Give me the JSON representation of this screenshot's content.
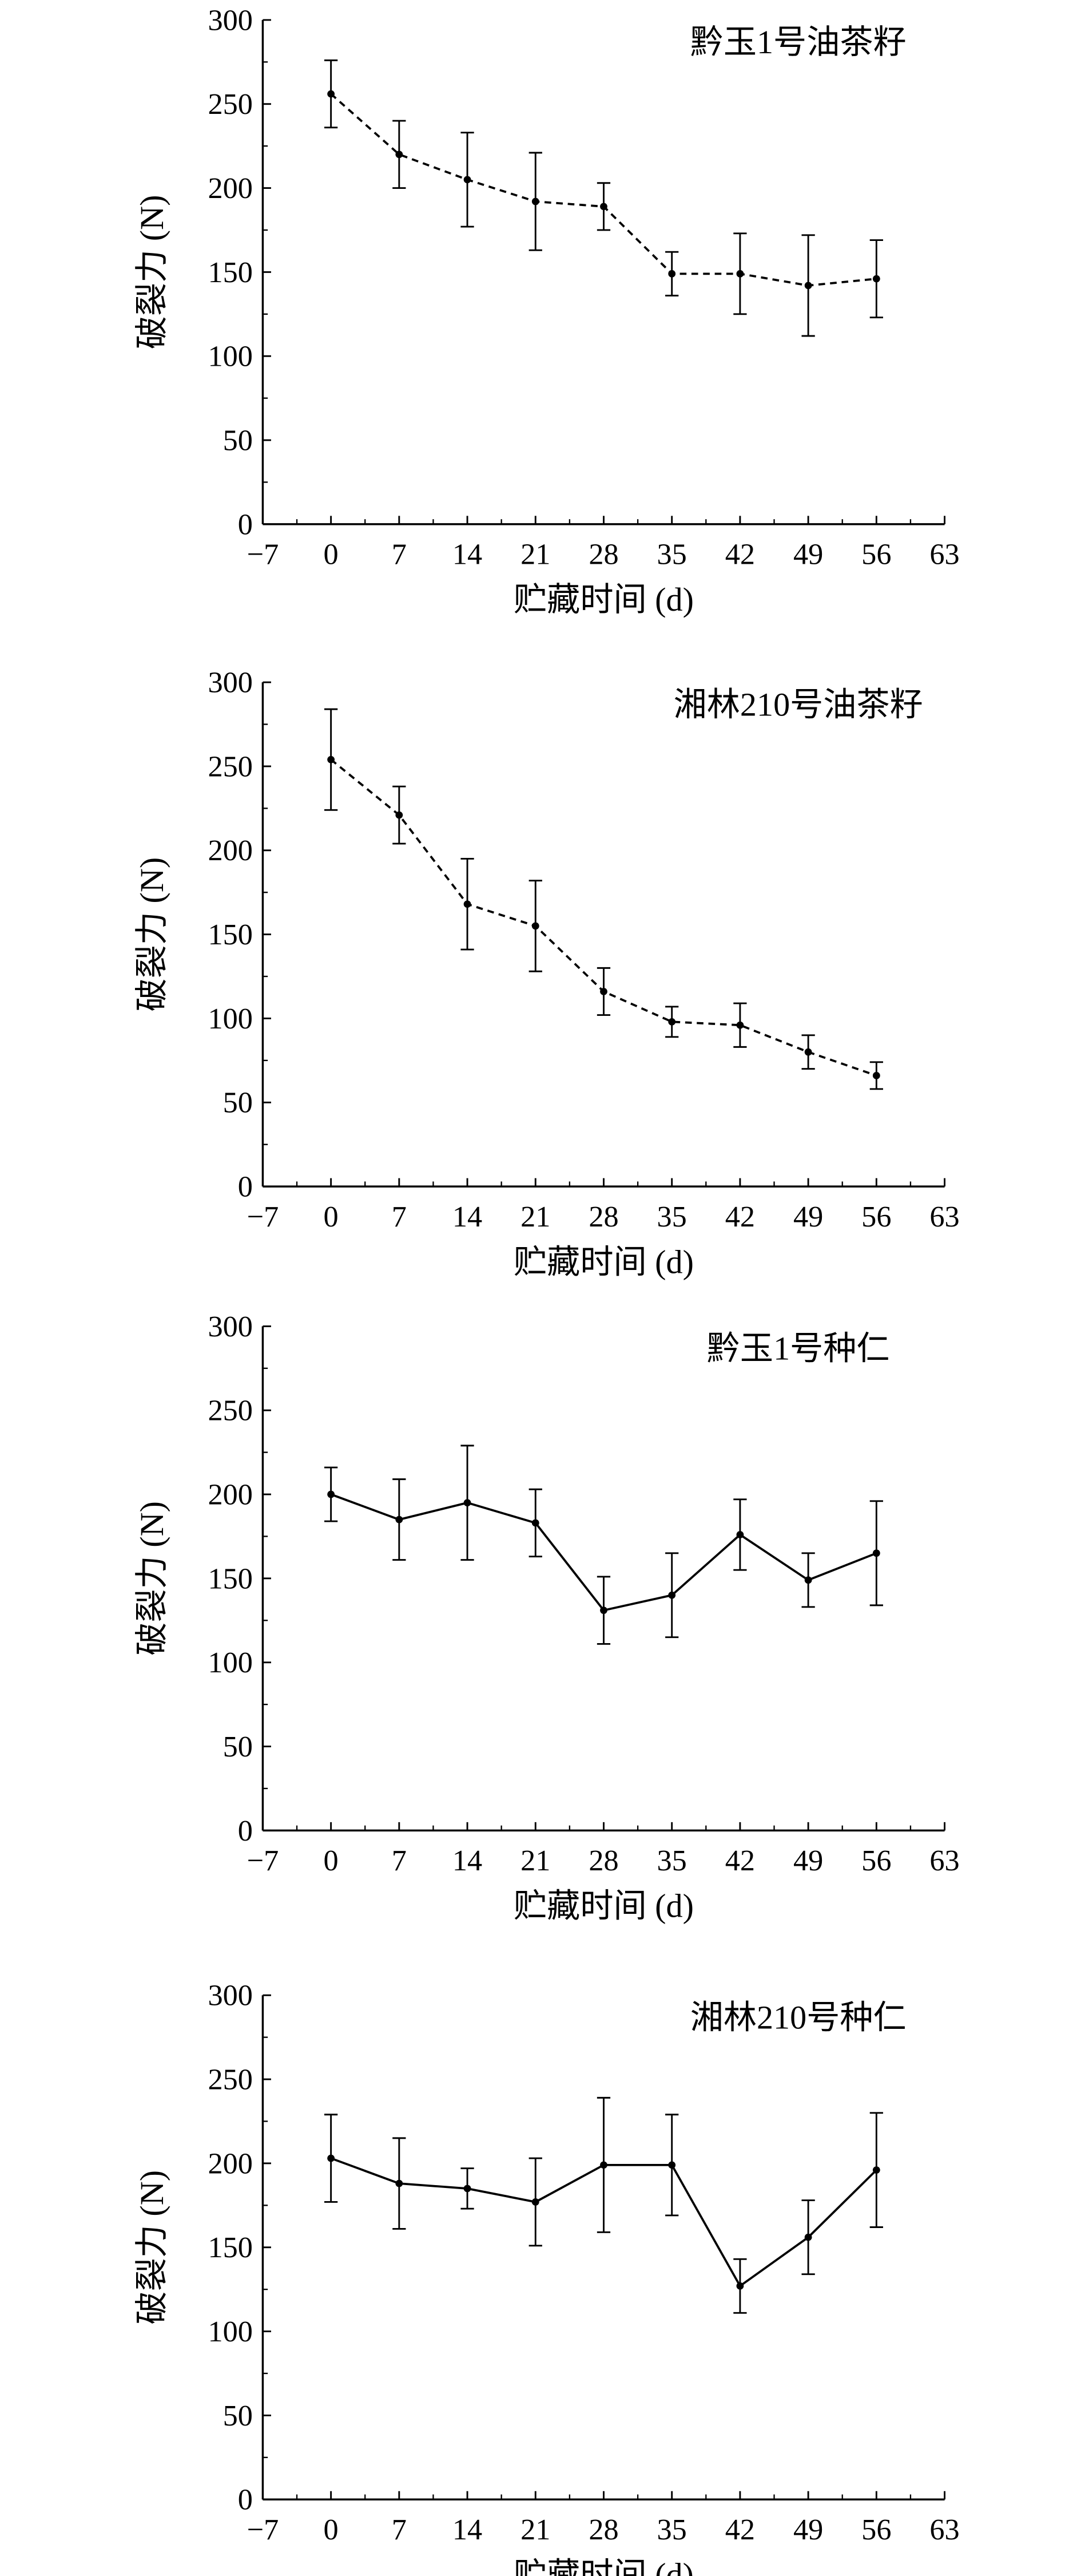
{
  "chart_data": [
    {
      "type": "line",
      "title": "黔玉1号油茶籽",
      "xlabel": "贮藏时间 (d)",
      "ylabel": "破裂力 (N)",
      "xlim": [
        -7,
        63
      ],
      "ylim": [
        0,
        300
      ],
      "xticks": [
        -7,
        0,
        7,
        14,
        21,
        28,
        35,
        42,
        49,
        56,
        63
      ],
      "yticks": [
        0,
        50,
        100,
        150,
        200,
        250,
        300
      ],
      "line_style": "dashed",
      "x": [
        0,
        7,
        14,
        21,
        28,
        35,
        42,
        49,
        56
      ],
      "y": [
        256,
        220,
        205,
        192,
        189,
        149,
        149,
        142,
        146
      ],
      "error": [
        20,
        20,
        28,
        29,
        14,
        13,
        24,
        30,
        23
      ]
    },
    {
      "type": "line",
      "title": "湘林210号油茶籽",
      "xlabel": "贮藏时间 (d)",
      "ylabel": "破裂力 (N)",
      "xlim": [
        -7,
        63
      ],
      "ylim": [
        0,
        300
      ],
      "xticks": [
        -7,
        0,
        7,
        14,
        21,
        28,
        35,
        42,
        49,
        56,
        63
      ],
      "yticks": [
        0,
        50,
        100,
        150,
        200,
        250,
        300
      ],
      "line_style": "dashed",
      "x": [
        0,
        7,
        14,
        21,
        28,
        35,
        42,
        49,
        56
      ],
      "y": [
        254,
        221,
        168,
        155,
        116,
        98,
        96,
        80,
        66
      ],
      "error": [
        30,
        17,
        27,
        27,
        14,
        9,
        13,
        10,
        8
      ]
    },
    {
      "type": "line",
      "title": "黔玉1号种仁",
      "xlabel": "贮藏时间 (d)",
      "ylabel": "破裂力 (N)",
      "xlim": [
        -7,
        63
      ],
      "ylim": [
        0,
        300
      ],
      "xticks": [
        -7,
        0,
        7,
        14,
        21,
        28,
        35,
        42,
        49,
        56,
        63
      ],
      "yticks": [
        0,
        50,
        100,
        150,
        200,
        250,
        300
      ],
      "line_style": "solid",
      "x": [
        0,
        7,
        14,
        21,
        28,
        35,
        42,
        49,
        56
      ],
      "y": [
        200,
        185,
        195,
        183,
        131,
        140,
        176,
        149,
        165
      ],
      "error": [
        16,
        24,
        34,
        20,
        20,
        25,
        21,
        16,
        31
      ]
    },
    {
      "type": "line",
      "title": "湘林210号种仁",
      "xlabel": "贮藏时间 (d)",
      "ylabel": "破裂力 (N)",
      "xlim": [
        -7,
        63
      ],
      "ylim": [
        0,
        300
      ],
      "xticks": [
        -7,
        0,
        7,
        14,
        21,
        28,
        35,
        42,
        49,
        56,
        63
      ],
      "yticks": [
        0,
        50,
        100,
        150,
        200,
        250,
        300
      ],
      "line_style": "solid",
      "x": [
        0,
        7,
        14,
        21,
        28,
        35,
        42,
        49,
        56
      ],
      "y": [
        203,
        188,
        185,
        177,
        199,
        199,
        127,
        156,
        196
      ],
      "error": [
        26,
        27,
        12,
        26,
        40,
        30,
        16,
        22,
        34
      ]
    }
  ]
}
